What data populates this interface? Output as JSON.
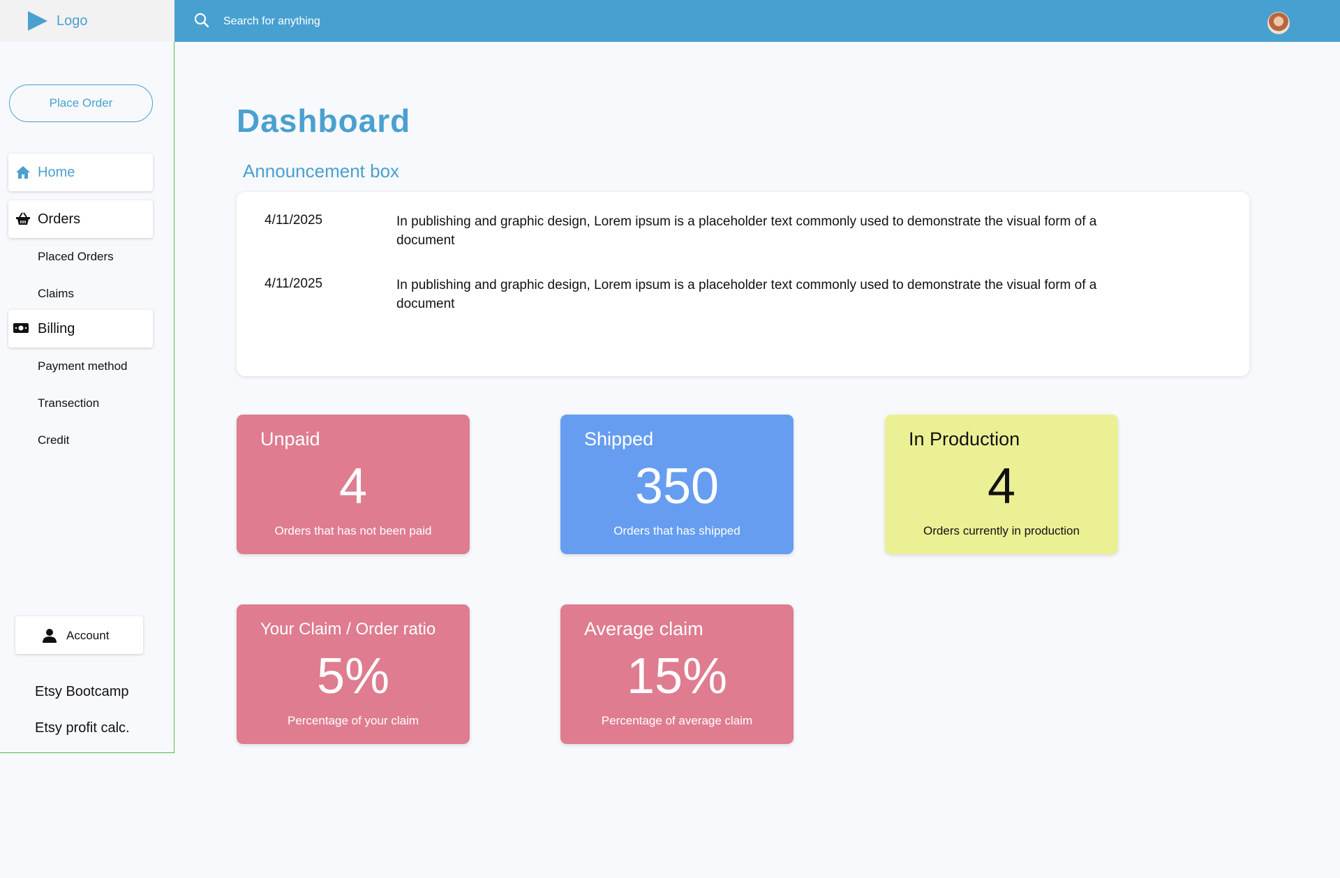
{
  "header": {
    "logo_text": "Logo",
    "search_placeholder": "Search for anything"
  },
  "sidebar": {
    "place_order": "Place Order",
    "home": "Home",
    "orders": "Orders",
    "orders_sub": [
      "Placed Orders",
      "Claims"
    ],
    "billing": "Billing",
    "billing_sub": [
      "Payment method",
      "Transection",
      "Credit"
    ],
    "account": "Account",
    "links": [
      "Etsy Bootcamp",
      "Etsy profit calc."
    ]
  },
  "main": {
    "title": "Dashboard",
    "announcement_title": "Announcement box",
    "announcements": [
      {
        "date": "4/11/2025",
        "text": "In publishing and graphic design, Lorem ipsum is a placeholder text commonly used to demonstrate the visual form of a document"
      },
      {
        "date": "4/11/2025",
        "text": "In publishing and graphic design, Lorem ipsum is a placeholder text commonly used to demonstrate the visual form of a document"
      }
    ],
    "stats": [
      {
        "label": "Unpaid",
        "value": "4",
        "desc": "Orders that has not been paid",
        "color": "#df7c90"
      },
      {
        "label": "Shipped",
        "value": "350",
        "desc": "Orders that has shipped",
        "color": "#669df1"
      },
      {
        "label": "In Production",
        "value": "4",
        "desc": "Orders currently in production",
        "color": "#ecf095"
      },
      {
        "label": "Your Claim / Order ratio",
        "value": "5%",
        "desc": "Percentage of your claim",
        "color": "#df7c90"
      },
      {
        "label": "Average claim",
        "value": "15%",
        "desc": "Percentage of average claim",
        "color": "#df7c90"
      }
    ]
  },
  "icons": {
    "logo": "play-triangle-icon",
    "search": "search-icon",
    "home": "home-icon",
    "orders": "basket-icon",
    "billing": "money-bill-icon",
    "account": "user-icon"
  },
  "colors": {
    "accent": "#4aa0d0",
    "topbar": "#47a0d0",
    "sidebar_border": "#59b94a",
    "pink": "#df7c90",
    "blue": "#669df1",
    "yellow": "#ecf095"
  }
}
